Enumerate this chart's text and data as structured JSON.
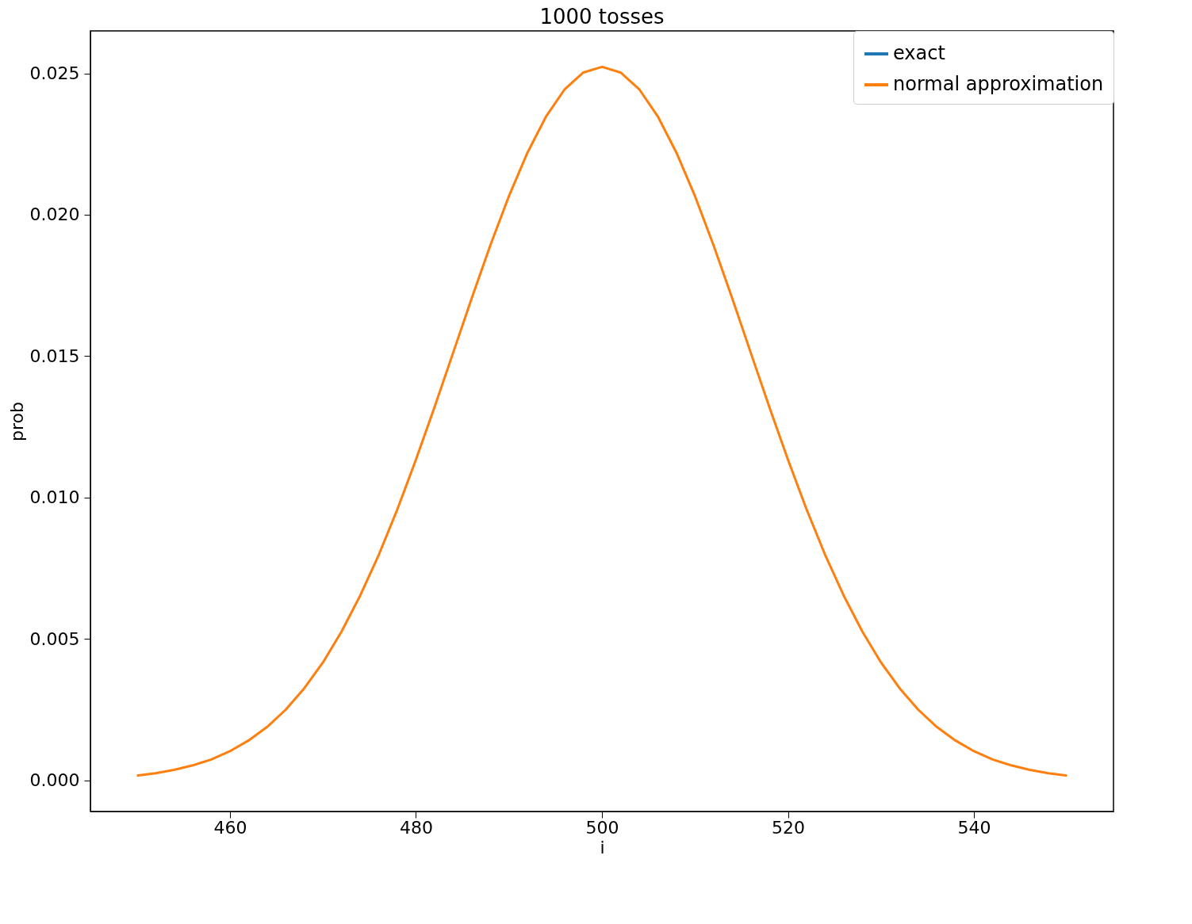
{
  "chart_data": {
    "type": "line",
    "title": "1000 tosses",
    "xlabel": "i",
    "ylabel": "prob",
    "x": [
      450,
      452,
      454,
      456,
      458,
      460,
      462,
      464,
      466,
      468,
      470,
      472,
      474,
      476,
      478,
      480,
      482,
      484,
      486,
      488,
      490,
      492,
      494,
      496,
      498,
      500,
      502,
      504,
      506,
      508,
      510,
      512,
      514,
      516,
      518,
      520,
      522,
      524,
      526,
      528,
      530,
      532,
      534,
      536,
      538,
      540,
      542,
      544,
      546,
      548,
      550
    ],
    "series": [
      {
        "name": "exact",
        "color": "#1f77b4",
        "values": [
          null,
          null,
          null,
          null,
          null,
          null,
          null,
          null,
          null,
          null,
          null,
          null,
          null,
          null,
          null,
          null,
          null,
          null,
          null,
          null,
          null,
          null,
          null,
          null,
          null,
          null,
          null,
          null,
          null,
          null,
          null,
          null,
          null,
          null,
          null,
          null,
          null,
          null,
          null,
          null,
          null,
          null,
          null,
          null,
          null,
          null,
          null,
          null,
          null,
          null,
          null
        ]
      },
      {
        "name": "normal approximation",
        "color": "#ff7f0e",
        "values": [
          0.00017,
          0.00025,
          0.00037,
          0.00053,
          0.00074,
          0.00103,
          0.00141,
          0.00189,
          0.0025,
          0.00326,
          0.00417,
          0.00526,
          0.00653,
          0.00797,
          0.00958,
          0.01134,
          0.0132,
          0.01512,
          0.01705,
          0.01892,
          0.02066,
          0.0222,
          0.02348,
          0.02444,
          0.02503,
          0.02523,
          0.02503,
          0.02444,
          0.02348,
          0.0222,
          0.02066,
          0.01892,
          0.01705,
          0.01512,
          0.0132,
          0.01134,
          0.00958,
          0.00797,
          0.00653,
          0.00526,
          0.00417,
          0.00326,
          0.0025,
          0.00189,
          0.00141,
          0.00103,
          0.00074,
          0.00053,
          0.00037,
          0.00025,
          0.00017
        ]
      }
    ],
    "xlim": [
      445,
      555
    ],
    "xticks": [
      460,
      480,
      500,
      520,
      540
    ],
    "ylim": [
      -0.0011,
      0.0265
    ],
    "yticks": [
      {
        "value": 0,
        "label": "0.000"
      },
      {
        "value": 0.005,
        "label": "0.005"
      },
      {
        "value": 0.01,
        "label": "0.010"
      },
      {
        "value": 0.015,
        "label": "0.015"
      },
      {
        "value": 0.02,
        "label": "0.020"
      },
      {
        "value": 0.025,
        "label": "0.025"
      }
    ],
    "legend": "top right",
    "grid": false,
    "line_style": "solid",
    "marker": "none"
  }
}
